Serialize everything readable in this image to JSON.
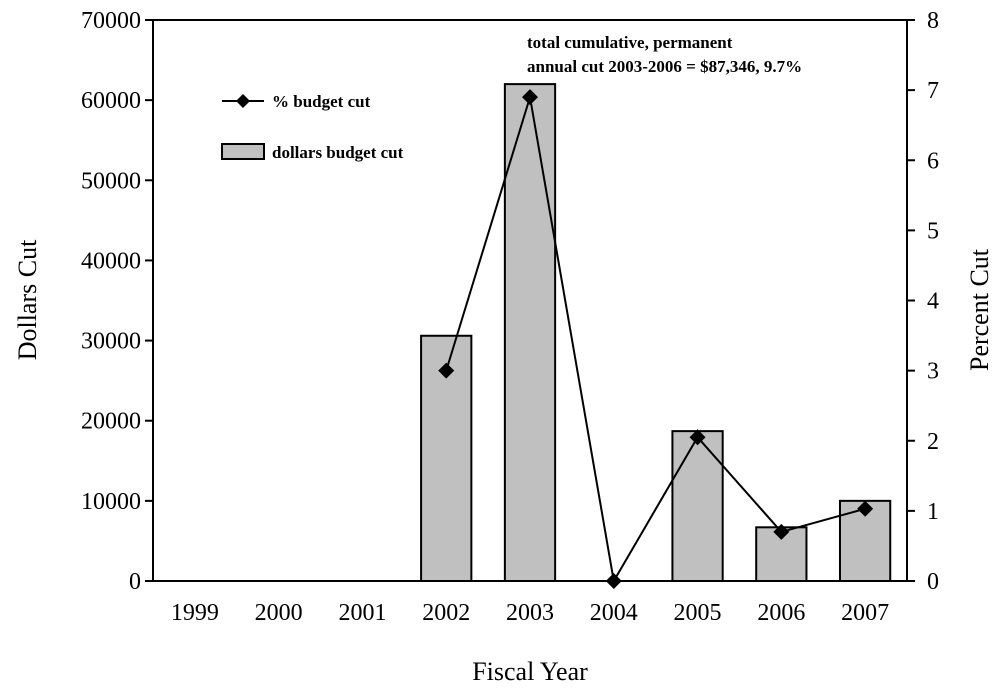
{
  "chart_data": {
    "type": "bar",
    "categories": [
      "1999",
      "2000",
      "2001",
      "2002",
      "2003",
      "2004",
      "2005",
      "2006",
      "2007"
    ],
    "series": [
      {
        "name": "dollars budget cut",
        "kind": "bar",
        "axis": "left",
        "values": [
          0,
          0,
          0,
          30600,
          62000,
          0,
          18700,
          6700,
          10000
        ],
        "color": "#c0c0c0"
      },
      {
        "name": "% budget cut",
        "kind": "line",
        "axis": "right",
        "marker": "diamond",
        "values": [
          null,
          null,
          null,
          3.0,
          6.9,
          0.0,
          2.05,
          0.7,
          1.03
        ],
        "color": "#000000"
      }
    ],
    "xlabel": "Fiscal Year",
    "ylabel": "Dollars Cut",
    "y2label": "Percent Cut",
    "ylim": [
      0,
      70000
    ],
    "y2lim": [
      0,
      8
    ],
    "yticks": [
      0,
      10000,
      20000,
      30000,
      40000,
      50000,
      60000,
      70000
    ],
    "y2ticks": [
      0,
      1,
      2,
      3,
      4,
      5,
      6,
      7,
      8
    ],
    "grid": false,
    "legend_position": "top-left",
    "annotation": {
      "line1": "total cumulative, permanent",
      "line2": "annual cut 2003-2006 = $87,346, 9.7%"
    }
  }
}
